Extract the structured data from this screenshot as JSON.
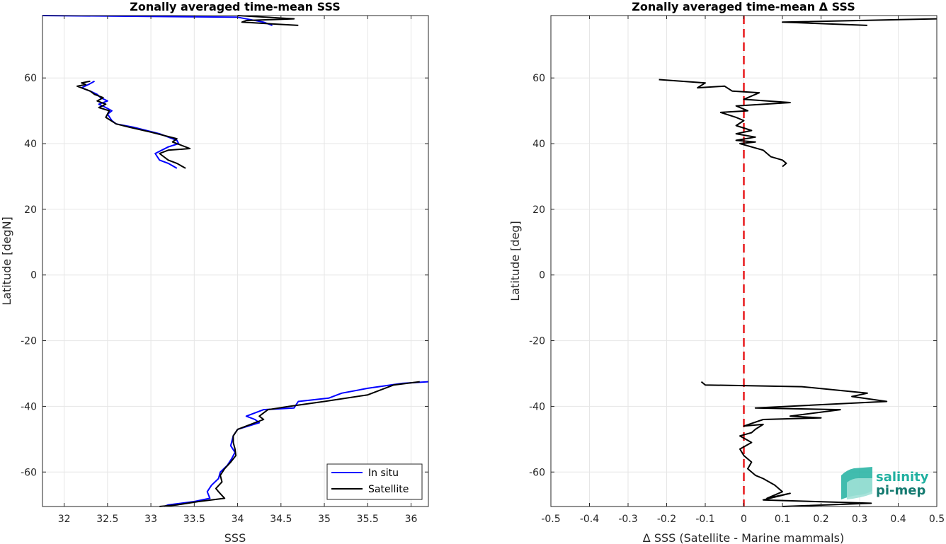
{
  "chart_data": [
    {
      "type": "line",
      "title": "Zonally averaged time-mean SSS",
      "xlabel": "SSS",
      "ylabel": "Latitude [degN]",
      "xlim": [
        31.75,
        36.2
      ],
      "ylim": [
        -70.5,
        79
      ],
      "xticks": [
        32,
        32.5,
        33,
        33.5,
        34,
        34.5,
        35,
        35.5,
        36
      ],
      "xticklabels": [
        "32",
        "32.5",
        "33",
        "33.5",
        "34",
        "34.5",
        "35",
        "35.5",
        "36"
      ],
      "yticks": [
        -60,
        -40,
        -20,
        0,
        20,
        40,
        60
      ],
      "yticklabels": [
        "-60",
        "-40",
        "-20",
        "0",
        "20",
        "40",
        "60"
      ],
      "grid": true,
      "legend_position": "bottom-right",
      "series": [
        {
          "name": "In situ",
          "color": "#0000ff",
          "segments": [
            [
              [
                31.75,
                79
              ],
              [
                34.0,
                78.5
              ],
              [
                34.3,
                77
              ],
              [
                34.4,
                76
              ]
            ],
            [
              [
                32.35,
                59
              ],
              [
                32.28,
                58
              ],
              [
                32.2,
                57
              ],
              [
                32.3,
                56
              ],
              [
                32.38,
                55
              ],
              [
                32.42,
                54
              ],
              [
                32.5,
                53
              ],
              [
                32.4,
                52
              ],
              [
                32.48,
                51
              ],
              [
                32.55,
                50
              ],
              [
                32.5,
                49
              ],
              [
                32.55,
                47
              ],
              [
                32.6,
                46
              ],
              [
                32.8,
                45
              ],
              [
                33.1,
                43
              ],
              [
                33.3,
                41
              ],
              [
                33.32,
                40
              ],
              [
                33.2,
                39
              ],
              [
                33.05,
                37
              ],
              [
                33.1,
                35
              ],
              [
                33.2,
                34
              ],
              [
                33.3,
                32.5
              ]
            ],
            [
              [
                36.2,
                -32.5
              ],
              [
                35.9,
                -33
              ],
              [
                35.5,
                -34.5
              ],
              [
                35.2,
                -36
              ],
              [
                35.05,
                -37.5
              ],
              [
                34.7,
                -38.5
              ],
              [
                34.65,
                -40.5
              ],
              [
                34.3,
                -41
              ],
              [
                34.1,
                -43
              ],
              [
                34.2,
                -44
              ],
              [
                34.25,
                -45
              ],
              [
                34.0,
                -47
              ],
              [
                33.95,
                -49
              ],
              [
                33.92,
                -52
              ],
              [
                33.97,
                -54
              ],
              [
                33.93,
                -56
              ],
              [
                33.88,
                -58
              ],
              [
                33.8,
                -60
              ],
              [
                33.78,
                -62
              ],
              [
                33.7,
                -64
              ],
              [
                33.65,
                -66
              ],
              [
                33.68,
                -68
              ],
              [
                33.5,
                -69
              ],
              [
                33.2,
                -70
              ],
              [
                33.15,
                -70.5
              ]
            ]
          ]
        },
        {
          "name": "Satellite",
          "color": "#000000",
          "segments": [
            [
              [
                34.0,
                79
              ],
              [
                34.65,
                78
              ],
              [
                34.1,
                77.5
              ],
              [
                34.05,
                77
              ],
              [
                34.7,
                76
              ]
            ],
            [
              [
                32.3,
                59
              ],
              [
                32.2,
                58.5
              ],
              [
                32.25,
                58
              ],
              [
                32.15,
                57.5
              ],
              [
                32.3,
                56
              ],
              [
                32.35,
                55
              ],
              [
                32.45,
                54
              ],
              [
                32.38,
                53
              ],
              [
                32.48,
                52
              ],
              [
                32.4,
                51
              ],
              [
                32.52,
                50
              ],
              [
                32.48,
                48
              ],
              [
                32.6,
                46
              ],
              [
                32.75,
                45
              ],
              [
                33.0,
                43.5
              ],
              [
                33.3,
                41.5
              ],
              [
                33.25,
                40.5
              ],
              [
                33.45,
                38.5
              ],
              [
                33.2,
                38
              ],
              [
                33.1,
                37
              ],
              [
                33.2,
                35
              ],
              [
                33.3,
                34
              ],
              [
                33.4,
                32.5
              ]
            ],
            [
              [
                36.1,
                -32.5
              ],
              [
                35.8,
                -33.5
              ],
              [
                35.5,
                -36.5
              ],
              [
                35.0,
                -38.5
              ],
              [
                34.6,
                -40
              ],
              [
                34.35,
                -41
              ],
              [
                34.25,
                -43
              ],
              [
                34.3,
                -44
              ],
              [
                34.2,
                -45
              ],
              [
                34.0,
                -47
              ],
              [
                33.95,
                -49
              ],
              [
                33.95,
                -51
              ],
              [
                33.97,
                -53
              ],
              [
                33.98,
                -55
              ],
              [
                33.92,
                -57
              ],
              [
                33.85,
                -59
              ],
              [
                33.8,
                -61
              ],
              [
                33.82,
                -63
              ],
              [
                33.75,
                -65
              ],
              [
                33.78,
                -66
              ],
              [
                33.85,
                -68
              ],
              [
                33.55,
                -69
              ],
              [
                33.3,
                -70
              ],
              [
                33.1,
                -70.5
              ]
            ]
          ]
        }
      ]
    },
    {
      "type": "line",
      "title": "Zonally averaged time-mean Δ SSS",
      "xlabel": "Δ SSS (Satellite - Marine mammals)",
      "ylabel": "Latitude [deg]",
      "xlim": [
        -0.5,
        0.5
      ],
      "ylim": [
        -70.5,
        79
      ],
      "xticks": [
        -0.5,
        -0.4,
        -0.3,
        -0.2,
        -0.1,
        0,
        0.1,
        0.2,
        0.3,
        0.4,
        0.5
      ],
      "xticklabels": [
        "-0.5",
        "-0.4",
        "-0.3",
        "-0.2",
        "-0.1",
        "0",
        "0.1",
        "0.2",
        "0.3",
        "0.4",
        "0.5"
      ],
      "yticks": [
        -60,
        -40,
        -20,
        0,
        20,
        40,
        60
      ],
      "yticklabels": [
        "-60",
        "-40",
        "-20",
        "0",
        "20",
        "40",
        "60"
      ],
      "grid": true,
      "reference_line": {
        "x": 0,
        "color": "#e8191c",
        "style": "dashed"
      },
      "series": [
        {
          "color": "#000000",
          "segments": [
            [
              [
                0.5,
                78
              ],
              [
                0.1,
                77
              ],
              [
                0.32,
                76
              ]
            ],
            [
              [
                -0.22,
                59.5
              ],
              [
                -0.1,
                58.5
              ],
              [
                -0.12,
                57
              ],
              [
                -0.05,
                57.5
              ],
              [
                -0.03,
                56
              ],
              [
                0.04,
                55.5
              ],
              [
                0.0,
                53.5
              ],
              [
                0.12,
                52.5
              ],
              [
                -0.02,
                51.5
              ],
              [
                0.01,
                50
              ],
              [
                -0.06,
                49.5
              ],
              [
                -0.02,
                48
              ],
              [
                0.0,
                47
              ],
              [
                -0.02,
                45.5
              ],
              [
                0.02,
                44
              ],
              [
                -0.02,
                43
              ],
              [
                0.03,
                42
              ],
              [
                -0.02,
                41
              ],
              [
                0.03,
                40.5
              ],
              [
                -0.01,
                40
              ],
              [
                0.05,
                38
              ],
              [
                0.07,
                36
              ],
              [
                0.1,
                35
              ],
              [
                0.11,
                34
              ],
              [
                0.1,
                33
              ]
            ],
            [
              [
                -0.11,
                -32.5
              ],
              [
                -0.1,
                -33.5
              ],
              [
                0.15,
                -34
              ],
              [
                0.32,
                -36
              ],
              [
                0.28,
                -37
              ],
              [
                0.37,
                -38.5
              ],
              [
                0.03,
                -40.5
              ],
              [
                0.25,
                -41
              ],
              [
                0.12,
                -43
              ],
              [
                0.2,
                -43.5
              ],
              [
                0.05,
                -44
              ],
              [
                0.0,
                -46
              ],
              [
                0.05,
                -45.5
              ],
              [
                0.03,
                -47
              ],
              [
                0.02,
                -48
              ],
              [
                -0.01,
                -49
              ],
              [
                0.02,
                -51
              ],
              [
                -0.01,
                -53
              ],
              [
                0.0,
                -55
              ],
              [
                0.02,
                -57
              ],
              [
                0.01,
                -59
              ],
              [
                0.03,
                -61
              ],
              [
                0.05,
                -62
              ],
              [
                0.08,
                -64
              ],
              [
                0.1,
                -66
              ],
              [
                0.06,
                -68
              ],
              [
                0.12,
                -66.5
              ],
              [
                0.05,
                -68.5
              ],
              [
                0.33,
                -69.5
              ],
              [
                0.1,
                -70.5
              ]
            ]
          ]
        }
      ]
    }
  ],
  "logo": {
    "line1": "salinity",
    "line2": "pi-mep",
    "color_light": "#20b0a0",
    "color_dark": "#147a70"
  }
}
